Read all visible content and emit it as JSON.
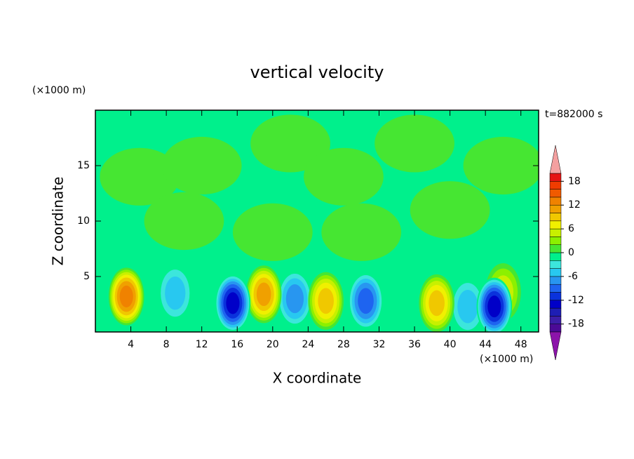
{
  "chart_data": {
    "type": "contour",
    "title": "vertical velocity",
    "x_label": "X coordinate",
    "y_label": "Z coordinate",
    "x_unit": "(×1000 m)",
    "y_unit": "(×1000 m)",
    "annotation": "t=882000 s",
    "xlim": [
      0,
      50
    ],
    "ylim": [
      0,
      20
    ],
    "xticks": [
      4,
      8,
      12,
      16,
      20,
      24,
      28,
      32,
      36,
      40,
      44,
      48
    ],
    "yticks": [
      5,
      10,
      15
    ],
    "colorbar": {
      "levels": [
        -20,
        -18,
        -16,
        -14,
        -12,
        -10,
        -8,
        -6,
        -4,
        -2,
        0,
        2,
        4,
        6,
        8,
        10,
        12,
        14,
        16,
        18,
        20
      ],
      "colors": [
        "#4b0a96",
        "#3c1ea8",
        "#1e1eb4",
        "#0000c8",
        "#0a32dc",
        "#1e64f0",
        "#2896f0",
        "#28c8f0",
        "#3ce6dc",
        "#00f08c",
        "#46e632",
        "#8cf000",
        "#c8f000",
        "#f0f000",
        "#f0c800",
        "#f0a000",
        "#f08200",
        "#f05a00",
        "#f03c00",
        "#e61414"
      ],
      "over_color": "#f4a0a0",
      "under_color": "#8c14aa",
      "ticks": [
        -18,
        -12,
        -6,
        0,
        6,
        12,
        18
      ]
    },
    "cells": [
      {
        "x": 3.5,
        "z": 3.2,
        "value": 14
      },
      {
        "x": 19,
        "z": 3.4,
        "value": 12
      },
      {
        "x": 26,
        "z": 2.8,
        "value": 10
      },
      {
        "x": 38.5,
        "z": 2.6,
        "value": 10
      },
      {
        "x": 46,
        "z": 3.6,
        "value": 6
      },
      {
        "x": 9,
        "z": 3.5,
        "value": -6
      },
      {
        "x": 15.5,
        "z": 2.6,
        "value": -14
      },
      {
        "x": 22.5,
        "z": 3,
        "value": -8
      },
      {
        "x": 30.5,
        "z": 2.8,
        "value": -10
      },
      {
        "x": 42,
        "z": 2.3,
        "value": -6
      },
      {
        "x": 45,
        "z": 2.3,
        "value": -14
      },
      {
        "x": 5,
        "z": 14,
        "value": 1
      },
      {
        "x": 12,
        "z": 15,
        "value": 1
      },
      {
        "x": 22,
        "z": 17,
        "value": 1
      },
      {
        "x": 28,
        "z": 14,
        "value": 1
      },
      {
        "x": 40,
        "z": 11,
        "value": 1
      },
      {
        "x": 46,
        "z": 15,
        "value": 1
      },
      {
        "x": 30,
        "z": 9,
        "value": 1
      },
      {
        "x": 20,
        "z": 9,
        "value": 1
      },
      {
        "x": 36,
        "z": 17,
        "value": 1
      },
      {
        "x": 10,
        "z": 10,
        "value": 1
      }
    ]
  }
}
